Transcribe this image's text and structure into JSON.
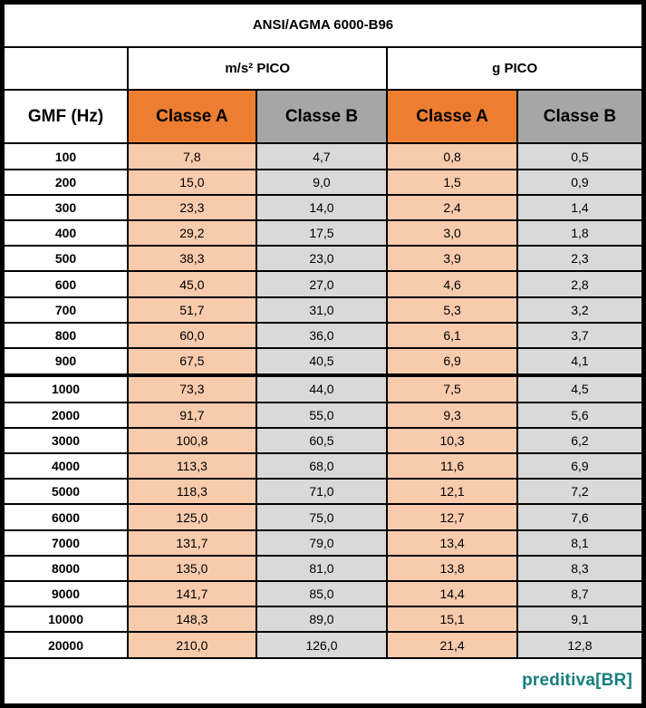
{
  "title": "ANSI/AGMA 6000-B96",
  "header": {
    "gmf_label": "GMF (Hz)",
    "groups": [
      {
        "label": "m/s² PICO"
      },
      {
        "label": "g PICO"
      }
    ],
    "class_a_label": "Classe A",
    "class_b_label": "Classe B"
  },
  "rows": [
    {
      "gmf": "100",
      "values": [
        "7,8",
        "4,7",
        "0,8",
        "0,5"
      ]
    },
    {
      "gmf": "200",
      "values": [
        "15,0",
        "9,0",
        "1,5",
        "0,9"
      ]
    },
    {
      "gmf": "300",
      "values": [
        "23,3",
        "14,0",
        "2,4",
        "1,4"
      ]
    },
    {
      "gmf": "400",
      "values": [
        "29,2",
        "17,5",
        "3,0",
        "1,8"
      ]
    },
    {
      "gmf": "500",
      "values": [
        "38,3",
        "23,0",
        "3,9",
        "2,3"
      ]
    },
    {
      "gmf": "600",
      "values": [
        "45,0",
        "27,0",
        "4,6",
        "2,8"
      ]
    },
    {
      "gmf": "700",
      "values": [
        "51,7",
        "31,0",
        "5,3",
        "3,2"
      ]
    },
    {
      "gmf": "800",
      "values": [
        "60,0",
        "36,0",
        "6,1",
        "3,7"
      ]
    },
    {
      "gmf": "900",
      "values": [
        "67,5",
        "40,5",
        "6,9",
        "4,1"
      ]
    },
    {
      "gmf": "1000",
      "values": [
        "73,3",
        "44,0",
        "7,5",
        "4,5"
      ],
      "section_start": true
    },
    {
      "gmf": "2000",
      "values": [
        "91,7",
        "55,0",
        "9,3",
        "5,6"
      ]
    },
    {
      "gmf": "3000",
      "values": [
        "100,8",
        "60,5",
        "10,3",
        "6,2"
      ]
    },
    {
      "gmf": "4000",
      "values": [
        "113,3",
        "68,0",
        "11,6",
        "6,9"
      ]
    },
    {
      "gmf": "5000",
      "values": [
        "118,3",
        "71,0",
        "12,1",
        "7,2"
      ]
    },
    {
      "gmf": "6000",
      "values": [
        "125,0",
        "75,0",
        "12,7",
        "7,6"
      ]
    },
    {
      "gmf": "7000",
      "values": [
        "131,7",
        "79,0",
        "13,4",
        "8,1"
      ]
    },
    {
      "gmf": "8000",
      "values": [
        "135,0",
        "81,0",
        "13,8",
        "8,3"
      ]
    },
    {
      "gmf": "9000",
      "values": [
        "141,7",
        "85,0",
        "14,4",
        "8,7"
      ]
    },
    {
      "gmf": "10000",
      "values": [
        "148,3",
        "89,0",
        "15,1",
        "9,1"
      ]
    },
    {
      "gmf": "20000",
      "values": [
        "210,0",
        "126,0",
        "21,4",
        "12,8"
      ]
    }
  ],
  "footer": {
    "logo_text": "preditiva[BR]"
  },
  "colors": {
    "class_a_header": "#ED7D31",
    "class_b_header": "#A6A6A6",
    "class_a_cell": "#F8CBAD",
    "class_b_cell": "#D9D9D9",
    "grid": "#000000",
    "logo": "#177E7E",
    "background": "#FFFFFF"
  },
  "chart_data": {
    "type": "table",
    "title": "ANSI/AGMA 6000-B96",
    "columns": [
      "GMF (Hz)",
      "m/s² PICO Classe A",
      "m/s² PICO Classe B",
      "g PICO Classe A",
      "g PICO Classe B"
    ],
    "rows": [
      [
        100,
        7.8,
        4.7,
        0.8,
        0.5
      ],
      [
        200,
        15.0,
        9.0,
        1.5,
        0.9
      ],
      [
        300,
        23.3,
        14.0,
        2.4,
        1.4
      ],
      [
        400,
        29.2,
        17.5,
        3.0,
        1.8
      ],
      [
        500,
        38.3,
        23.0,
        3.9,
        2.3
      ],
      [
        600,
        45.0,
        27.0,
        4.6,
        2.8
      ],
      [
        700,
        51.7,
        31.0,
        5.3,
        3.2
      ],
      [
        800,
        60.0,
        36.0,
        6.1,
        3.7
      ],
      [
        900,
        67.5,
        40.5,
        6.9,
        4.1
      ],
      [
        1000,
        73.3,
        44.0,
        7.5,
        4.5
      ],
      [
        2000,
        91.7,
        55.0,
        9.3,
        5.6
      ],
      [
        3000,
        100.8,
        60.5,
        10.3,
        6.2
      ],
      [
        4000,
        113.3,
        68.0,
        11.6,
        6.9
      ],
      [
        5000,
        118.3,
        71.0,
        12.1,
        7.2
      ],
      [
        6000,
        125.0,
        75.0,
        12.7,
        7.6
      ],
      [
        7000,
        131.7,
        79.0,
        13.4,
        8.1
      ],
      [
        8000,
        135.0,
        81.0,
        13.8,
        8.3
      ],
      [
        9000,
        141.7,
        85.0,
        14.4,
        8.7
      ],
      [
        10000,
        148.3,
        89.0,
        15.1,
        9.1
      ],
      [
        20000,
        210.0,
        126.0,
        21.4,
        12.8
      ]
    ],
    "decimal_separator": ",",
    "notes": "Vibration severity limits table; thick rule separates rows below 1000 Hz from 1000 Hz and above"
  }
}
